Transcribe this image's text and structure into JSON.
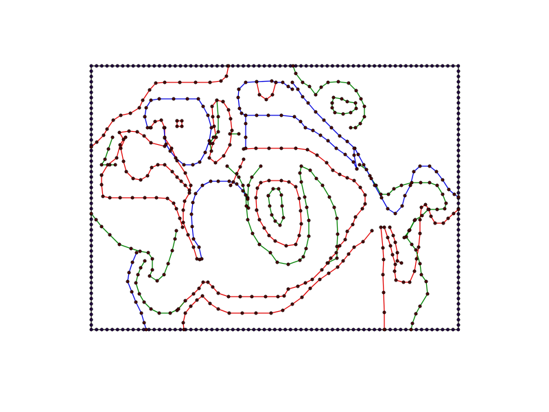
{
  "colors": {
    "background": "#ffffff",
    "frame": "#000000",
    "red": "#e00000",
    "green": "#008000",
    "blue": "#0000dd",
    "vertex_fill": "#4a0000",
    "vertex_stroke": "#000000",
    "frame_vertex_fill": "#200040"
  },
  "diagram": {
    "type": "contour-mesh",
    "line_colors": [
      "red",
      "green",
      "blue"
    ],
    "has_text": false
  }
}
